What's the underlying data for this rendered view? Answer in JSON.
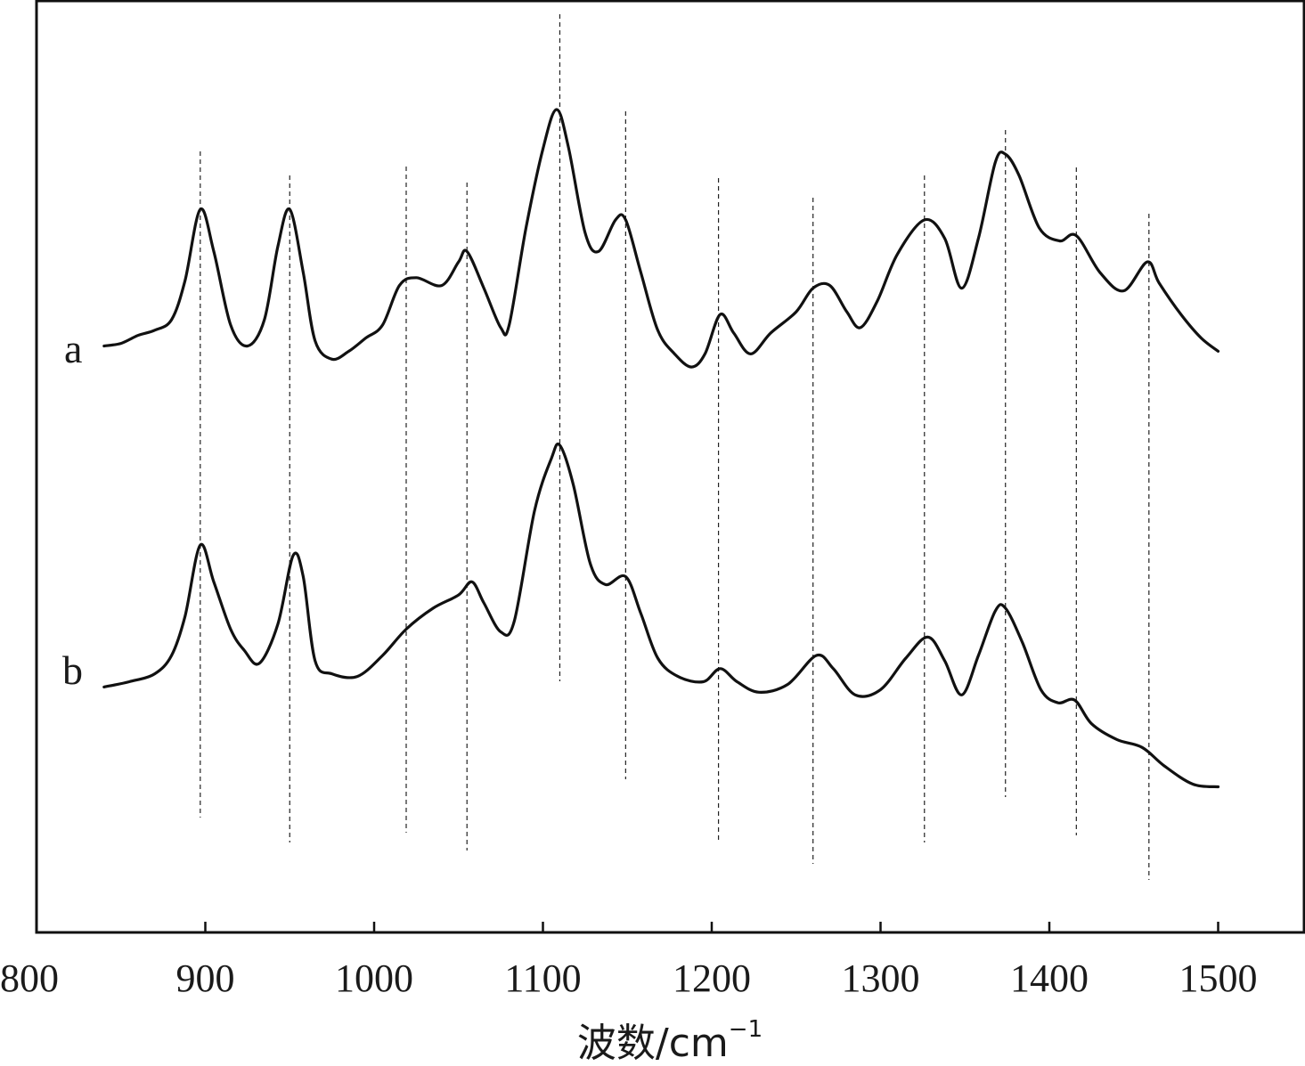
{
  "chart_data": {
    "type": "line",
    "xlabel": "波数/cm",
    "xlabel_superscript": "−1",
    "ylabel": "",
    "xlim": [
      800,
      1550
    ],
    "x_ticks": [
      800,
      900,
      1000,
      1100,
      1200,
      1300,
      1400,
      1500
    ],
    "grid": false,
    "y_ticks_shown": false,
    "reference_lines_x": [
      897,
      950,
      1019,
      1055,
      1110,
      1149,
      1204,
      1260,
      1326,
      1374,
      1416,
      1459
    ],
    "series": [
      {
        "name": "a",
        "color": "#111111",
        "points": [
          [
            840,
            0.1
          ],
          [
            850,
            0.11
          ],
          [
            860,
            0.14
          ],
          [
            870,
            0.16
          ],
          [
            880,
            0.2
          ],
          [
            888,
            0.35
          ],
          [
            897,
            0.62
          ],
          [
            905,
            0.46
          ],
          [
            915,
            0.18
          ],
          [
            925,
            0.1
          ],
          [
            935,
            0.2
          ],
          [
            943,
            0.48
          ],
          [
            950,
            0.62
          ],
          [
            958,
            0.38
          ],
          [
            965,
            0.12
          ],
          [
            975,
            0.05
          ],
          [
            985,
            0.08
          ],
          [
            995,
            0.13
          ],
          [
            1005,
            0.18
          ],
          [
            1015,
            0.33
          ],
          [
            1025,
            0.36
          ],
          [
            1040,
            0.33
          ],
          [
            1050,
            0.42
          ],
          [
            1055,
            0.46
          ],
          [
            1065,
            0.32
          ],
          [
            1075,
            0.17
          ],
          [
            1080,
            0.18
          ],
          [
            1090,
            0.55
          ],
          [
            1100,
            0.85
          ],
          [
            1108,
            1.0
          ],
          [
            1115,
            0.86
          ],
          [
            1125,
            0.53
          ],
          [
            1133,
            0.46
          ],
          [
            1143,
            0.58
          ],
          [
            1149,
            0.58
          ],
          [
            1158,
            0.38
          ],
          [
            1168,
            0.16
          ],
          [
            1178,
            0.07
          ],
          [
            1188,
            0.02
          ],
          [
            1196,
            0.07
          ],
          [
            1205,
            0.22
          ],
          [
            1213,
            0.15
          ],
          [
            1223,
            0.07
          ],
          [
            1235,
            0.15
          ],
          [
            1250,
            0.23
          ],
          [
            1260,
            0.32
          ],
          [
            1270,
            0.33
          ],
          [
            1280,
            0.23
          ],
          [
            1288,
            0.17
          ],
          [
            1298,
            0.27
          ],
          [
            1310,
            0.45
          ],
          [
            1326,
            0.58
          ],
          [
            1338,
            0.51
          ],
          [
            1348,
            0.32
          ],
          [
            1358,
            0.51
          ],
          [
            1368,
            0.8
          ],
          [
            1374,
            0.83
          ],
          [
            1382,
            0.75
          ],
          [
            1394,
            0.55
          ],
          [
            1406,
            0.5
          ],
          [
            1416,
            0.52
          ],
          [
            1430,
            0.38
          ],
          [
            1444,
            0.31
          ],
          [
            1458,
            0.42
          ],
          [
            1465,
            0.34
          ],
          [
            1478,
            0.22
          ],
          [
            1490,
            0.13
          ],
          [
            1500,
            0.08
          ]
        ]
      },
      {
        "name": "b",
        "color": "#111111",
        "points": [
          [
            840,
            0.08
          ],
          [
            855,
            0.1
          ],
          [
            870,
            0.13
          ],
          [
            880,
            0.2
          ],
          [
            888,
            0.35
          ],
          [
            897,
            0.62
          ],
          [
            905,
            0.48
          ],
          [
            915,
            0.3
          ],
          [
            923,
            0.22
          ],
          [
            932,
            0.17
          ],
          [
            943,
            0.32
          ],
          [
            952,
            0.58
          ],
          [
            958,
            0.5
          ],
          [
            965,
            0.18
          ],
          [
            975,
            0.13
          ],
          [
            990,
            0.12
          ],
          [
            1005,
            0.2
          ],
          [
            1019,
            0.3
          ],
          [
            1035,
            0.38
          ],
          [
            1050,
            0.43
          ],
          [
            1058,
            0.48
          ],
          [
            1065,
            0.4
          ],
          [
            1075,
            0.29
          ],
          [
            1083,
            0.33
          ],
          [
            1095,
            0.75
          ],
          [
            1105,
            0.95
          ],
          [
            1110,
            1.0
          ],
          [
            1118,
            0.85
          ],
          [
            1128,
            0.55
          ],
          [
            1137,
            0.47
          ],
          [
            1149,
            0.5
          ],
          [
            1158,
            0.36
          ],
          [
            1168,
            0.19
          ],
          [
            1180,
            0.12
          ],
          [
            1195,
            0.1
          ],
          [
            1205,
            0.15
          ],
          [
            1215,
            0.1
          ],
          [
            1228,
            0.06
          ],
          [
            1245,
            0.09
          ],
          [
            1262,
            0.2
          ],
          [
            1272,
            0.15
          ],
          [
            1285,
            0.05
          ],
          [
            1300,
            0.07
          ],
          [
            1315,
            0.19
          ],
          [
            1328,
            0.27
          ],
          [
            1338,
            0.18
          ],
          [
            1348,
            0.05
          ],
          [
            1358,
            0.2
          ],
          [
            1368,
            0.37
          ],
          [
            1374,
            0.38
          ],
          [
            1384,
            0.25
          ],
          [
            1395,
            0.07
          ],
          [
            1405,
            0.02
          ],
          [
            1415,
            0.03
          ],
          [
            1425,
            -0.06
          ],
          [
            1440,
            -0.12
          ],
          [
            1455,
            -0.15
          ],
          [
            1468,
            -0.22
          ],
          [
            1485,
            -0.29
          ],
          [
            1500,
            -0.3
          ]
        ]
      }
    ]
  }
}
